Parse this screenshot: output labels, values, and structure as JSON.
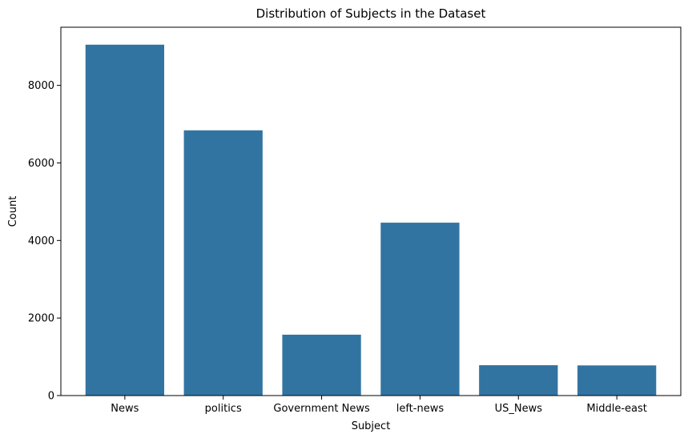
{
  "chart_data": {
    "type": "bar",
    "title": "Distribution of Subjects in the Dataset",
    "xlabel": "Subject",
    "ylabel": "Count",
    "categories": [
      "News",
      "politics",
      "Government News",
      "left-news",
      "US_News",
      "Middle-east"
    ],
    "values": [
      9050,
      6841,
      1570,
      4459,
      783,
      778
    ],
    "ylim": [
      0,
      9500
    ],
    "yticks": [
      0,
      2000,
      4000,
      6000,
      8000
    ],
    "bar_color": "#3274a1",
    "grid": false
  }
}
